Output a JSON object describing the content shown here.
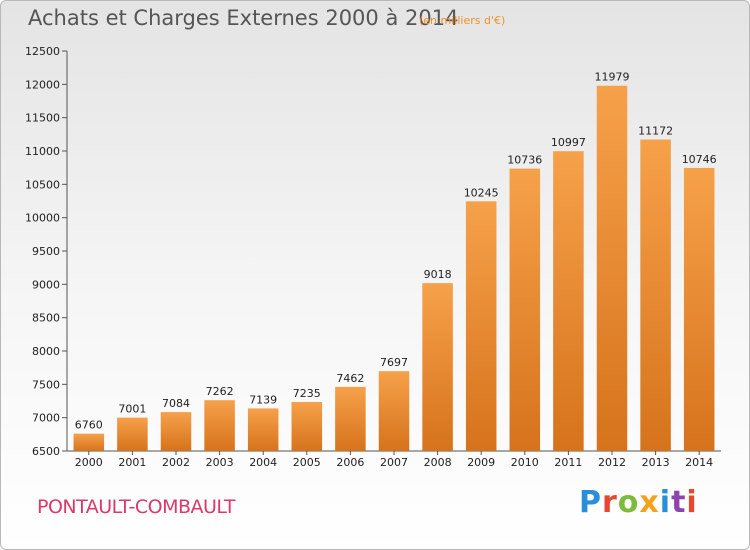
{
  "header": {
    "title": "Achats et Charges Externes 2000 à 2014",
    "subtitle": "(en milliers d'€)"
  },
  "footer": {
    "commune": "PONTAULT-COMBAULT",
    "brand": "Proxiti"
  },
  "colors": {
    "bar_light": "#f6a14a",
    "bar_dark": "#d6731c",
    "commune": "#d93a6a",
    "subtitle": "#f0932a"
  },
  "chart_data": {
    "type": "bar",
    "title": "Achats et Charges Externes 2000 à 2014",
    "subtitle": "(en milliers d'€)",
    "categories": [
      "2000",
      "2001",
      "2002",
      "2003",
      "2004",
      "2005",
      "2006",
      "2007",
      "2008",
      "2009",
      "2010",
      "2011",
      "2012",
      "2013",
      "2014"
    ],
    "values": [
      6760,
      7001,
      7084,
      7262,
      7139,
      7235,
      7462,
      7697,
      9018,
      10245,
      10736,
      10997,
      11979,
      11172,
      10746
    ],
    "ylim": [
      6500,
      12500
    ],
    "yticks": [
      6500,
      7000,
      7500,
      8000,
      8500,
      9000,
      9500,
      10000,
      10500,
      11000,
      11500,
      12000,
      12500
    ],
    "grid": false,
    "legend": "none"
  }
}
